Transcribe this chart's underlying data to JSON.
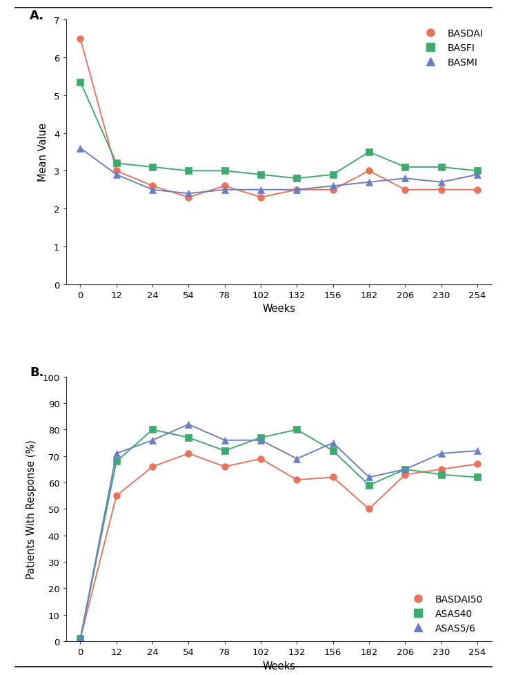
{
  "weeks_labels": [
    "0",
    "12",
    "24",
    "54",
    "78",
    "102",
    "132",
    "156",
    "182",
    "206",
    "230",
    "254"
  ],
  "x_positions": [
    0,
    1,
    2,
    3,
    4,
    5,
    6,
    7,
    8,
    9,
    10,
    11
  ],
  "BASDAI": [
    6.5,
    3.0,
    2.6,
    2.3,
    2.6,
    2.3,
    2.5,
    2.5,
    3.0,
    2.5,
    2.5,
    2.5
  ],
  "BASFI": [
    5.35,
    3.2,
    3.1,
    3.0,
    3.0,
    2.9,
    2.8,
    2.9,
    3.5,
    3.1,
    3.1,
    3.0
  ],
  "BASMI": [
    3.6,
    2.9,
    2.5,
    2.4,
    2.5,
    2.5,
    2.5,
    2.6,
    2.7,
    2.8,
    2.7,
    2.9
  ],
  "BASDAI50": [
    1,
    55,
    66,
    71,
    66,
    69,
    61,
    62,
    50,
    63,
    65,
    67
  ],
  "ASAS40": [
    1,
    68,
    80,
    77,
    72,
    77,
    80,
    72,
    59,
    65,
    63,
    62
  ],
  "ASAS56": [
    1,
    71,
    76,
    82,
    76,
    76,
    69,
    75,
    62,
    65,
    71,
    72
  ],
  "color_red": "#E8735A",
  "color_green": "#3DAA6E",
  "color_blue": "#6B7DC4",
  "bg_color": "#FFFFFF",
  "ylabel_A": "Mean Value",
  "ylabel_B": "Patients With Response (%)",
  "xlabel": "Weeks",
  "ylim_A": [
    0,
    7
  ],
  "ylim_B": [
    0,
    100
  ],
  "yticks_A": [
    0,
    1,
    2,
    3,
    4,
    5,
    6,
    7
  ],
  "yticks_B": [
    0,
    10,
    20,
    30,
    40,
    50,
    60,
    70,
    80,
    90,
    100
  ],
  "label_A": "A.",
  "label_B": "B.",
  "legend_A": [
    "BASDAI",
    "BASFI",
    "BASMI"
  ],
  "legend_B": [
    "BASDAI50",
    "ASAS40",
    "ASAS5/6"
  ]
}
